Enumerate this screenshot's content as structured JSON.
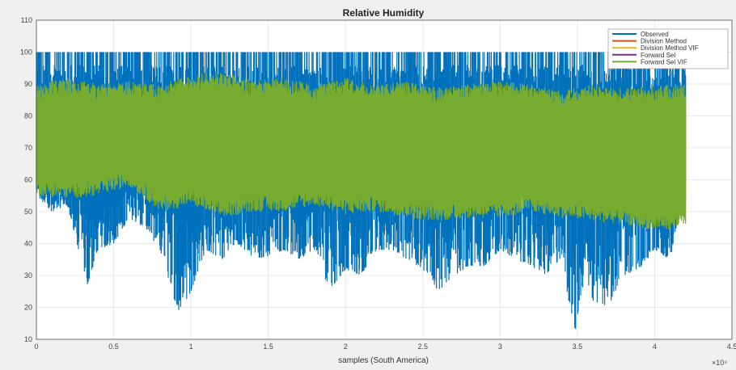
{
  "chart_data": {
    "type": "line",
    "title": "Relative Humidity",
    "xlabel": "samples (South America)",
    "ylabel": "",
    "x_exponent_label": "×10⁴",
    "xlim": [
      0,
      45000
    ],
    "ylim": [
      10,
      110
    ],
    "xticks": [
      0,
      5000,
      10000,
      15000,
      20000,
      25000,
      30000,
      35000,
      40000,
      45000
    ],
    "xtick_labels": [
      "0",
      "0.5",
      "1",
      "1.5",
      "2",
      "2.5",
      "3",
      "3.5",
      "4",
      "4.5"
    ],
    "yticks": [
      10,
      20,
      30,
      40,
      50,
      60,
      70,
      80,
      90,
      100,
      110
    ],
    "grid": true,
    "legend_position": "top-right",
    "n_samples": 42000,
    "series": [
      {
        "name": "Observed",
        "color": "#0072bd",
        "range_min": 10,
        "range_max": 100,
        "lower_envelope": [
          [
            0,
            55
          ],
          [
            1000,
            50
          ],
          [
            2000,
            52
          ],
          [
            3300,
            27
          ],
          [
            4000,
            38
          ],
          [
            5000,
            40
          ],
          [
            6000,
            48
          ],
          [
            7000,
            45
          ],
          [
            8000,
            38
          ],
          [
            9200,
            18
          ],
          [
            10000,
            25
          ],
          [
            11000,
            38
          ],
          [
            12000,
            35
          ],
          [
            13000,
            40
          ],
          [
            14000,
            35
          ],
          [
            15000,
            36
          ],
          [
            16000,
            38
          ],
          [
            17000,
            35
          ],
          [
            18000,
            38
          ],
          [
            19000,
            25
          ],
          [
            20000,
            32
          ],
          [
            21000,
            30
          ],
          [
            22000,
            38
          ],
          [
            23000,
            38
          ],
          [
            24000,
            35
          ],
          [
            25000,
            32
          ],
          [
            26000,
            25
          ],
          [
            27000,
            30
          ],
          [
            28000,
            33
          ],
          [
            29000,
            33
          ],
          [
            30000,
            38
          ],
          [
            31000,
            35
          ],
          [
            32000,
            33
          ],
          [
            33000,
            30
          ],
          [
            34000,
            36
          ],
          [
            34800,
            10
          ],
          [
            35500,
            30
          ],
          [
            36000,
            22
          ],
          [
            37000,
            20
          ],
          [
            38000,
            30
          ],
          [
            39000,
            32
          ],
          [
            40000,
            38
          ],
          [
            41000,
            35
          ],
          [
            42000,
            60
          ]
        ]
      },
      {
        "name": "Division Method",
        "color": "#d95319"
      },
      {
        "name": "Division Method VIF",
        "color": "#edb120"
      },
      {
        "name": "Forward Sel",
        "color": "#7e2f8e"
      },
      {
        "name": "Forward Sel VIF",
        "color": "#77ac30",
        "range_min": 44,
        "range_max": 94,
        "upper_envelope": [
          [
            0,
            90
          ],
          [
            2000,
            92
          ],
          [
            4000,
            90
          ],
          [
            6000,
            91
          ],
          [
            8000,
            90
          ],
          [
            10000,
            93
          ],
          [
            12000,
            94
          ],
          [
            14000,
            91
          ],
          [
            16000,
            92
          ],
          [
            18000,
            90
          ],
          [
            20000,
            92
          ],
          [
            22000,
            90
          ],
          [
            24000,
            91
          ],
          [
            26000,
            89
          ],
          [
            28000,
            90
          ],
          [
            30000,
            91
          ],
          [
            32000,
            90
          ],
          [
            34000,
            88
          ],
          [
            36000,
            90
          ],
          [
            38000,
            89
          ],
          [
            40000,
            90
          ],
          [
            42000,
            90
          ]
        ],
        "lower_envelope": [
          [
            0,
            55
          ],
          [
            2000,
            54
          ],
          [
            4000,
            55
          ],
          [
            6000,
            58
          ],
          [
            8000,
            50
          ],
          [
            10000,
            52
          ],
          [
            12000,
            48
          ],
          [
            14000,
            50
          ],
          [
            16000,
            50
          ],
          [
            18000,
            52
          ],
          [
            20000,
            49
          ],
          [
            22000,
            50
          ],
          [
            24000,
            48
          ],
          [
            26000,
            47
          ],
          [
            28000,
            48
          ],
          [
            30000,
            48
          ],
          [
            32000,
            50
          ],
          [
            34000,
            48
          ],
          [
            36000,
            47
          ],
          [
            38000,
            46
          ],
          [
            40000,
            44
          ],
          [
            42000,
            45
          ]
        ]
      }
    ]
  }
}
